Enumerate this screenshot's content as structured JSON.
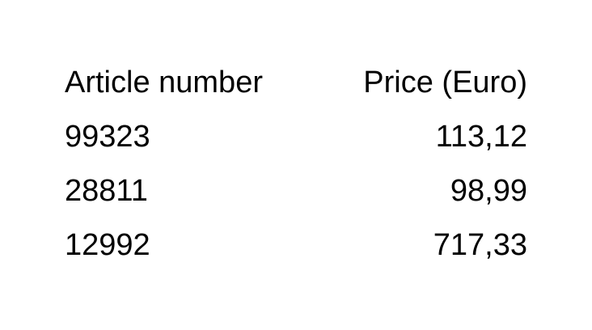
{
  "table": {
    "headers": {
      "article": "Article number",
      "price": "Price (Euro)"
    },
    "rows": [
      {
        "article": "99323",
        "price": "113,12"
      },
      {
        "article": "28811",
        "price": "98,99"
      },
      {
        "article": "12992",
        "price": "717,33"
      }
    ]
  },
  "colors": {
    "background": "#ffffff",
    "text": "#000000"
  }
}
